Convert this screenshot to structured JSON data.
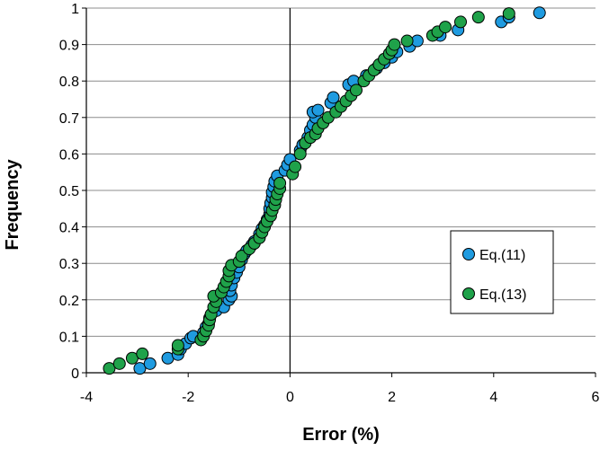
{
  "chart_data": {
    "type": "scatter",
    "xlabel": "Error (%)",
    "ylabel": "Frequency",
    "xlim": [
      -4,
      6
    ],
    "ylim": [
      0,
      1
    ],
    "x_ticks": [
      "-4",
      "-2",
      "0",
      "2",
      "4",
      "6"
    ],
    "y_ticks": [
      "0",
      "0.1",
      "0.2",
      "0.3",
      "0.4",
      "0.5",
      "0.6",
      "0.7",
      "0.8",
      "0.9",
      "1"
    ],
    "grid": "horizontal",
    "legend_position": "right",
    "series": [
      {
        "name": "Eq.(11)",
        "color": "#1f9be0",
        "points": [
          [
            -2.95,
            0.012
          ],
          [
            -2.75,
            0.025
          ],
          [
            -2.4,
            0.04
          ],
          [
            -2.2,
            0.05
          ],
          [
            -2.15,
            0.065
          ],
          [
            -2.05,
            0.08
          ],
          [
            -1.95,
            0.095
          ],
          [
            -1.9,
            0.1
          ],
          [
            -1.7,
            0.11
          ],
          [
            -1.65,
            0.125
          ],
          [
            -1.6,
            0.135
          ],
          [
            -1.58,
            0.15
          ],
          [
            -1.55,
            0.16
          ],
          [
            -1.45,
            0.17
          ],
          [
            -1.3,
            0.18
          ],
          [
            -1.2,
            0.2
          ],
          [
            -1.15,
            0.21
          ],
          [
            -1.18,
            0.225
          ],
          [
            -1.15,
            0.24
          ],
          [
            -1.1,
            0.26
          ],
          [
            -1.05,
            0.275
          ],
          [
            -1.0,
            0.29
          ],
          [
            -0.95,
            0.31
          ],
          [
            -0.9,
            0.325
          ],
          [
            -0.85,
            0.335
          ],
          [
            -0.75,
            0.35
          ],
          [
            -0.7,
            0.36
          ],
          [
            -0.6,
            0.38
          ],
          [
            -0.55,
            0.395
          ],
          [
            -0.5,
            0.405
          ],
          [
            -0.45,
            0.42
          ],
          [
            -0.4,
            0.435
          ],
          [
            -0.4,
            0.45
          ],
          [
            -0.38,
            0.465
          ],
          [
            -0.35,
            0.48
          ],
          [
            -0.35,
            0.495
          ],
          [
            -0.32,
            0.51
          ],
          [
            -0.3,
            0.525
          ],
          [
            -0.25,
            0.54
          ],
          [
            -0.1,
            0.555
          ],
          [
            -0.05,
            0.57
          ],
          [
            0.0,
            0.585
          ],
          [
            0.2,
            0.61
          ],
          [
            0.25,
            0.625
          ],
          [
            0.35,
            0.645
          ],
          [
            0.4,
            0.665
          ],
          [
            0.45,
            0.68
          ],
          [
            0.5,
            0.7
          ],
          [
            0.45,
            0.715
          ],
          [
            0.55,
            0.72
          ],
          [
            0.8,
            0.74
          ],
          [
            0.85,
            0.755
          ],
          [
            1.15,
            0.79
          ],
          [
            1.25,
            0.8
          ],
          [
            1.5,
            0.815
          ],
          [
            1.7,
            0.835
          ],
          [
            1.85,
            0.85
          ],
          [
            2.0,
            0.865
          ],
          [
            2.1,
            0.88
          ],
          [
            2.35,
            0.895
          ],
          [
            2.5,
            0.91
          ],
          [
            2.95,
            0.925
          ],
          [
            3.3,
            0.94
          ],
          [
            4.15,
            0.962
          ],
          [
            4.3,
            0.975
          ],
          [
            4.9,
            0.987
          ]
        ]
      },
      {
        "name": "Eq.(13)",
        "color": "#1fa24a",
        "points": [
          [
            -3.55,
            0.012
          ],
          [
            -3.35,
            0.025
          ],
          [
            -3.1,
            0.04
          ],
          [
            -2.9,
            0.052
          ],
          [
            -2.2,
            0.065
          ],
          [
            -2.2,
            0.075
          ],
          [
            -1.75,
            0.09
          ],
          [
            -1.7,
            0.1
          ],
          [
            -1.65,
            0.115
          ],
          [
            -1.6,
            0.13
          ],
          [
            -1.58,
            0.145
          ],
          [
            -1.55,
            0.16
          ],
          [
            -1.5,
            0.18
          ],
          [
            -1.45,
            0.195
          ],
          [
            -1.5,
            0.21
          ],
          [
            -1.35,
            0.22
          ],
          [
            -1.3,
            0.235
          ],
          [
            -1.25,
            0.25
          ],
          [
            -1.2,
            0.265
          ],
          [
            -1.2,
            0.28
          ],
          [
            -1.15,
            0.295
          ],
          [
            -1.0,
            0.305
          ],
          [
            -0.95,
            0.32
          ],
          [
            -0.8,
            0.34
          ],
          [
            -0.7,
            0.355
          ],
          [
            -0.6,
            0.37
          ],
          [
            -0.55,
            0.385
          ],
          [
            -0.5,
            0.4
          ],
          [
            -0.45,
            0.415
          ],
          [
            -0.38,
            0.43
          ],
          [
            -0.35,
            0.445
          ],
          [
            -0.3,
            0.46
          ],
          [
            -0.28,
            0.475
          ],
          [
            -0.25,
            0.49
          ],
          [
            -0.2,
            0.505
          ],
          [
            -0.2,
            0.52
          ],
          [
            0.05,
            0.545
          ],
          [
            0.1,
            0.565
          ],
          [
            0.2,
            0.6
          ],
          [
            0.3,
            0.63
          ],
          [
            0.4,
            0.645
          ],
          [
            0.5,
            0.655
          ],
          [
            0.55,
            0.67
          ],
          [
            0.65,
            0.685
          ],
          [
            0.75,
            0.7
          ],
          [
            0.9,
            0.715
          ],
          [
            1.0,
            0.73
          ],
          [
            1.1,
            0.745
          ],
          [
            1.2,
            0.76
          ],
          [
            1.3,
            0.775
          ],
          [
            1.45,
            0.8
          ],
          [
            1.55,
            0.815
          ],
          [
            1.65,
            0.83
          ],
          [
            1.75,
            0.845
          ],
          [
            1.85,
            0.86
          ],
          [
            1.95,
            0.875
          ],
          [
            2.0,
            0.885
          ],
          [
            2.05,
            0.9
          ],
          [
            2.3,
            0.91
          ],
          [
            2.8,
            0.925
          ],
          [
            2.9,
            0.935
          ],
          [
            3.05,
            0.948
          ],
          [
            3.35,
            0.962
          ],
          [
            3.7,
            0.975
          ],
          [
            4.3,
            0.985
          ]
        ]
      }
    ]
  }
}
